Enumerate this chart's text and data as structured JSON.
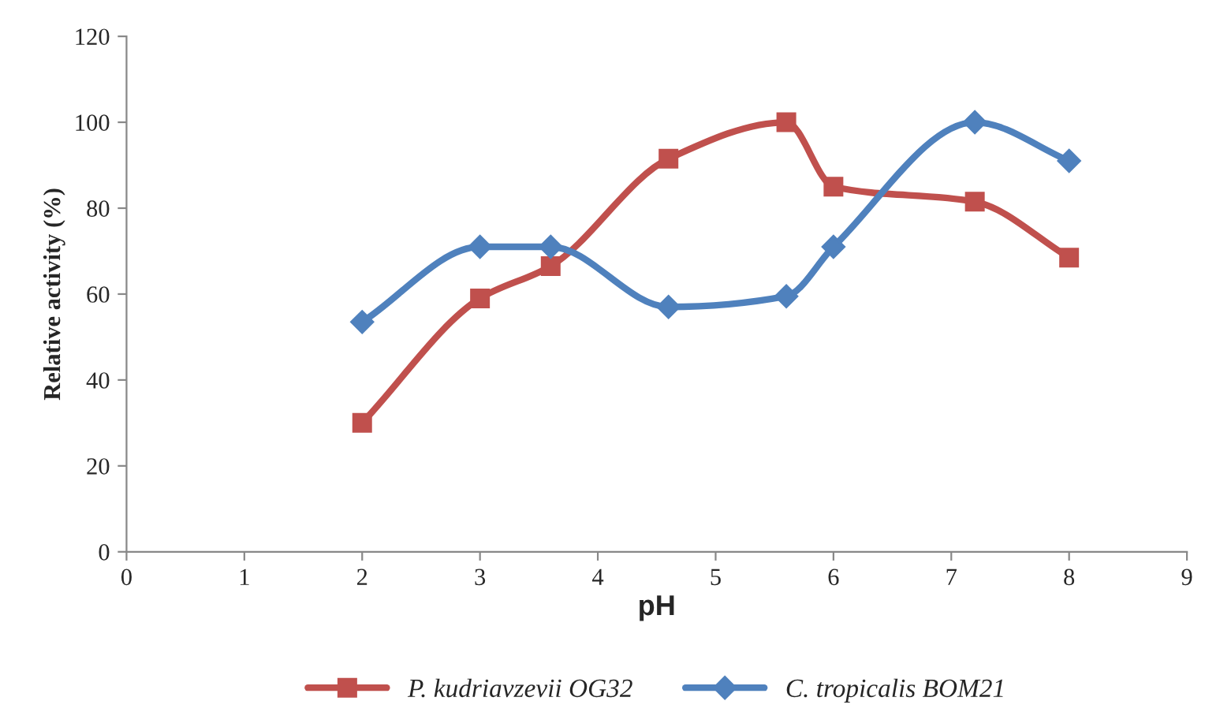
{
  "chart_data": {
    "type": "line",
    "xlabel": "pH",
    "ylabel": "Relative activity (%)",
    "xlim": [
      0,
      9
    ],
    "xticks": [
      0,
      1,
      2,
      3,
      4,
      5,
      6,
      7,
      8,
      9
    ],
    "ylim": [
      0,
      120
    ],
    "yticks": [
      0,
      20,
      40,
      60,
      80,
      100,
      120
    ],
    "grid": false,
    "legend": "bottom",
    "series": [
      {
        "name": "P. kudriavzevii OG32",
        "color": "#c0504d",
        "marker": "square",
        "x": [
          2,
          3,
          3.6,
          4.6,
          5.6,
          6,
          7.2,
          8
        ],
        "values": [
          30,
          59,
          66.5,
          91.5,
          100,
          85,
          81.5,
          68.5
        ]
      },
      {
        "name": "C. tropicalis BOM21",
        "color": "#4f81bd",
        "marker": "diamond",
        "x": [
          2,
          3,
          3.6,
          4.6,
          5.6,
          6,
          7.2,
          8
        ],
        "values": [
          53.5,
          71,
          71,
          57,
          59.5,
          71,
          100,
          91
        ]
      }
    ]
  }
}
